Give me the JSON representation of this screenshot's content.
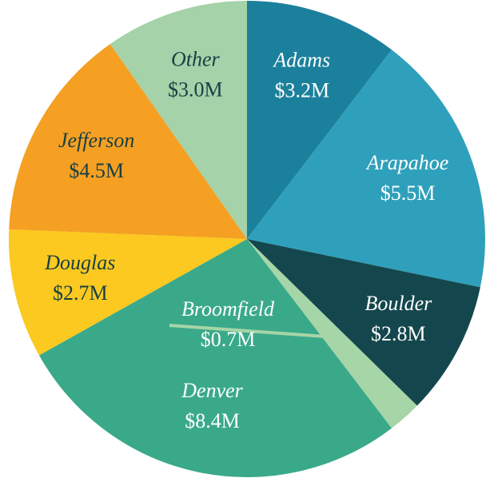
{
  "chart_data": {
    "type": "pie",
    "categories": [
      "Adams",
      "Arapahoe",
      "Boulder",
      "Broomfield",
      "Denver",
      "Douglas",
      "Jefferson",
      "Other"
    ],
    "values": [
      3.2,
      5.5,
      2.8,
      0.7,
      8.4,
      2.7,
      4.5,
      3.0
    ],
    "value_labels": [
      "$3.2M",
      "$5.5M",
      "$2.8M",
      "$0.7M",
      "$8.4M",
      "$2.7M",
      "$4.5M",
      "$3.0M"
    ],
    "colors": [
      "#1b809c",
      "#2fa0bb",
      "#14474d",
      "#a6d5a7",
      "#3aa98a",
      "#fbc91f",
      "#f5a022",
      "#a5d2a8"
    ]
  }
}
